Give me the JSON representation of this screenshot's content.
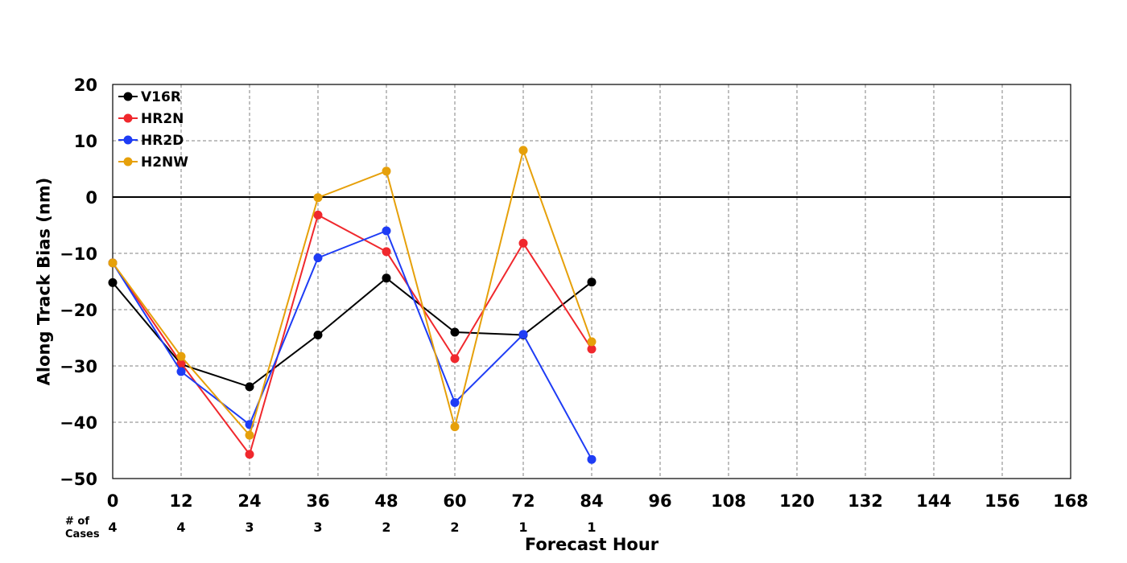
{
  "chart_data": {
    "type": "line",
    "xlabel": "Forecast Hour",
    "ylabel": "Along Track Bias (nm)",
    "xlim": [
      0,
      168
    ],
    "ylim": [
      -50,
      20
    ],
    "x_ticks": [
      0,
      12,
      24,
      36,
      48,
      60,
      72,
      84,
      96,
      108,
      120,
      132,
      144,
      156,
      168
    ],
    "y_ticks": [
      20,
      10,
      0,
      -10,
      -20,
      -30,
      -40,
      -50
    ],
    "y_tick_labels": [
      "20",
      "10",
      "0",
      "−10",
      "−20",
      "−30",
      "−40",
      "−50"
    ],
    "grid": true,
    "zero_line": true,
    "legend_position": "top-left",
    "cases_title": [
      "# of",
      "Cases"
    ],
    "cases": [
      {
        "x": 0,
        "label": "4"
      },
      {
        "x": 12,
        "label": "4"
      },
      {
        "x": 24,
        "label": "3"
      },
      {
        "x": 36,
        "label": "3"
      },
      {
        "x": 48,
        "label": "2"
      },
      {
        "x": 60,
        "label": "2"
      },
      {
        "x": 72,
        "label": "1"
      },
      {
        "x": 84,
        "label": "1"
      }
    ],
    "x": [
      0,
      12,
      24,
      36,
      48,
      60,
      72,
      84
    ],
    "series": [
      {
        "name": "V16R",
        "color": "#000000",
        "values": [
          -15.2,
          -29.7,
          -33.7,
          -24.5,
          -14.4,
          -24.0,
          -24.5,
          -15.1
        ]
      },
      {
        "name": "HR2N",
        "color": "#f0282d",
        "values": [
          -11.7,
          -29.5,
          -45.7,
          -3.2,
          -9.7,
          -28.7,
          -8.2,
          -27.0
        ]
      },
      {
        "name": "HR2D",
        "color": "#1e3cf5",
        "values": [
          -11.7,
          -31.0,
          -40.4,
          -10.8,
          -6.0,
          -36.5,
          -24.4,
          -46.6
        ]
      },
      {
        "name": "H2NW",
        "color": "#e6a00a",
        "values": [
          -11.7,
          -28.3,
          -42.3,
          -0.1,
          4.6,
          -40.8,
          8.3,
          -25.7
        ]
      }
    ]
  }
}
